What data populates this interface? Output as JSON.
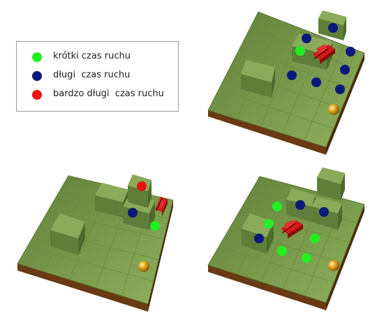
{
  "legend": {
    "items": [
      {
        "label": "krótki czas ruchu",
        "color": "#22ee22"
      },
      {
        "label": "długi  czas ruchu",
        "color": "#0a1a7a"
      },
      {
        "label": "bardzo długi  czas ruchu",
        "color": "#ee1111"
      }
    ]
  },
  "colors": {
    "board_top": "#7d9e4f",
    "board_side": "#6a3a14",
    "block_top": "#89aa58",
    "block_side": "#5f7e3a",
    "robot": "#d41a1a",
    "ball": "#e0a21c"
  },
  "icons": [
    "robot-icon",
    "ball-icon"
  ]
}
